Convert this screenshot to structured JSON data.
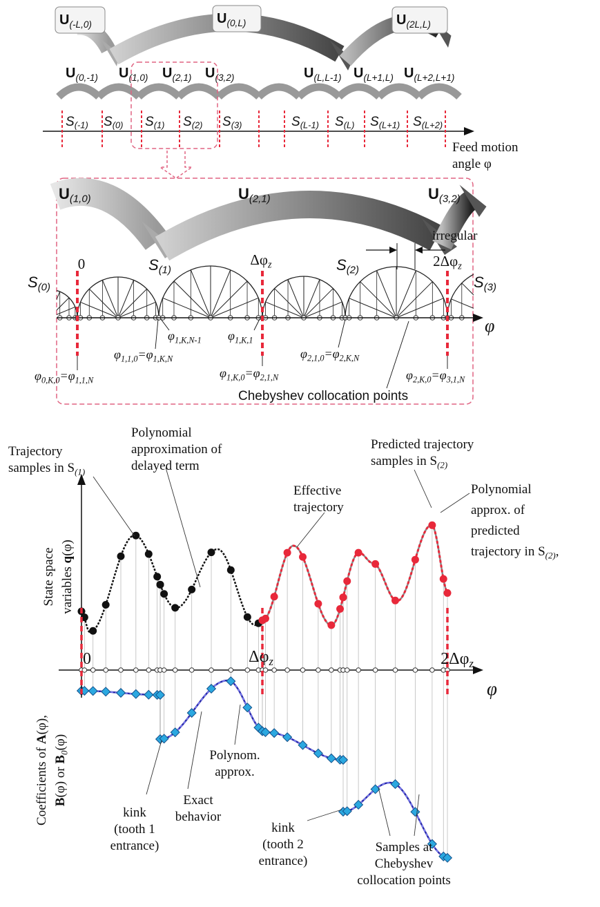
{
  "overview": {
    "operators_long": [
      [
        [
          {
            "t": "U",
            "s": "(-L,0)",
            "b": true
          }
        ]
      ],
      [
        [
          {
            "t": "U",
            "s": "(0,L)",
            "b": true
          }
        ]
      ],
      [
        [
          {
            "t": "U",
            "s": "(2L,L)",
            "b": true
          }
        ]
      ]
    ],
    "operators_short": [
      [
        [
          {
            "t": "U",
            "s": "(0,-1)",
            "b": true
          }
        ]
      ],
      [
        [
          {
            "t": "U",
            "s": "(1,0)",
            "b": true
          }
        ]
      ],
      [
        [
          {
            "t": "U",
            "s": "(2,1)",
            "b": true
          }
        ]
      ],
      [
        [
          {
            "t": "U",
            "s": "(3,2)",
            "b": true
          }
        ]
      ],
      [
        [
          {
            "t": "U",
            "s": "(L,L-1)",
            "b": true
          }
        ]
      ],
      [
        [
          {
            "t": "U",
            "s": "(L+1,L)",
            "b": true
          }
        ]
      ],
      [
        [
          {
            "t": "U",
            "s": "(L+2,L+1)",
            "b": true
          }
        ]
      ]
    ],
    "intervals": [
      [
        [
          {
            "t": "S",
            "s": "(-1)"
          }
        ]
      ],
      [
        [
          {
            "t": "S",
            "s": "(0)"
          }
        ]
      ],
      [
        [
          {
            "t": "S",
            "s": "(1)"
          }
        ]
      ],
      [
        [
          {
            "t": "S",
            "s": "(2)"
          }
        ]
      ],
      [
        [
          {
            "t": "S",
            "s": "(3)"
          }
        ]
      ],
      [
        [
          {
            "t": "S",
            "s": "(L-1)"
          }
        ]
      ],
      [
        [
          {
            "t": "S",
            "s": "(L)"
          }
        ]
      ],
      [
        [
          {
            "t": "S",
            "s": "(L+1)"
          }
        ]
      ],
      [
        [
          {
            "t": "S",
            "s": "(L+2)"
          }
        ]
      ]
    ],
    "axis_label": [
      [
        "Feed motion"
      ],
      [
        "angle φ"
      ]
    ]
  },
  "zoom": {
    "operators": [
      [
        [
          {
            "t": "U",
            "s": "(1,0)",
            "b": true
          }
        ]
      ],
      [
        [
          {
            "t": "U",
            "s": "(2,1)",
            "b": true
          }
        ]
      ],
      [
        [
          {
            "t": "U",
            "s": "(3,2)",
            "b": true
          }
        ]
      ]
    ],
    "intervals": [
      [
        [
          {
            "t": "S",
            "s": "(0)"
          }
        ]
      ],
      [
        [
          {
            "t": "S",
            "s": "(1)"
          }
        ]
      ],
      [
        [
          {
            "t": "S",
            "s": "(2)"
          }
        ]
      ],
      [
        [
          {
            "t": "S",
            "s": "(3)"
          }
        ]
      ]
    ],
    "ticks": [
      [
        [
          "0"
        ]
      ],
      [
        [
          {
            "t": "Δφ",
            "s": "z"
          }
        ]
      ],
      [
        [
          {
            "t": "2Δφ",
            "s": "z"
          }
        ]
      ]
    ],
    "irregular": [
      [
        "irregular"
      ]
    ],
    "axis_label": [
      [
        "φ"
      ]
    ],
    "points": [
      [
        [
          {
            "t": "φ",
            "s": "1,K,N-1"
          }
        ]
      ],
      [
        [
          {
            "t": "φ",
            "s": "1,K,1"
          }
        ]
      ],
      [
        [
          {
            "t": "φ",
            "s": "1,1,0"
          },
          {
            "t": "=φ",
            "s": "1,K,N"
          }
        ]
      ],
      [
        [
          {
            "t": "φ",
            "s": "2,1,0"
          },
          {
            "t": "=φ",
            "s": "2,K,N"
          }
        ]
      ],
      [
        [
          {
            "t": "φ",
            "s": "0,K,0"
          },
          {
            "t": "=φ",
            "s": "1,1,N"
          }
        ]
      ],
      [
        [
          {
            "t": "φ",
            "s": "1,K,0"
          },
          {
            "t": "=φ",
            "s": "2,1,N"
          }
        ]
      ],
      [
        [
          {
            "t": "φ",
            "s": "2,K,0"
          },
          {
            "t": "=φ",
            "s": "3,1,N"
          }
        ]
      ]
    ],
    "caption": [
      [
        "Chebyshev collocation points"
      ]
    ]
  },
  "plot": {
    "ticks": [
      [
        [
          "0"
        ]
      ],
      [
        [
          {
            "t": "Δφ",
            "s": "z"
          }
        ]
      ],
      [
        [
          {
            "t": "2Δφ",
            "s": "z"
          }
        ]
      ]
    ],
    "axis_label": [
      [
        "φ"
      ]
    ],
    "y_label_state": [
      [
        "State space"
      ],
      [
        "variables ",
        {
          "t": "q",
          "b": true
        },
        "(φ)"
      ]
    ],
    "y_label_coef": [
      [
        "Coefficients of ",
        {
          "t": "A",
          "b": true
        },
        "(φ),"
      ],
      [
        {
          "t": "B",
          "b": true
        },
        "(φ) or ",
        {
          "t": "B",
          "s": "0",
          "b": true
        },
        "(φ)"
      ]
    ],
    "annotations": [
      [
        [
          "Trajectory"
        ],
        [
          "samples in ",
          {
            "t": "S",
            "s": "(1)"
          }
        ]
      ],
      [
        [
          "Polynomial"
        ],
        [
          "approximation of"
        ],
        [
          "delayed term"
        ]
      ],
      [
        [
          "Predicted trajectory"
        ],
        [
          "samples in ",
          {
            "t": "S",
            "s": "(2)"
          }
        ]
      ],
      [
        [
          "Effective"
        ],
        [
          "trajectory"
        ]
      ],
      [
        [
          "Polynomial"
        ],
        [
          "approx. of"
        ],
        [
          "predicted"
        ],
        [
          "trajectory in ",
          {
            "t": "S",
            "s": "(2)"
          },
          ","
        ]
      ],
      [
        [
          "kink"
        ],
        [
          "(tooth 1"
        ],
        [
          "entrance)"
        ]
      ],
      [
        [
          "Exact"
        ],
        [
          "behavior"
        ]
      ],
      [
        [
          "Polynom."
        ],
        [
          "approx."
        ]
      ],
      [
        [
          "kink"
        ],
        [
          "(tooth 2"
        ],
        [
          "entrance)"
        ]
      ],
      [
        [
          "Samples at"
        ],
        [
          "Chebyshev"
        ],
        [
          "collocation points"
        ]
      ]
    ]
  }
}
